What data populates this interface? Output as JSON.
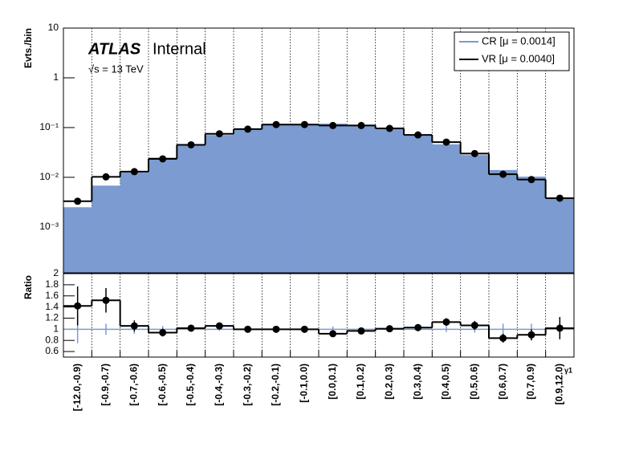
{
  "chart_data": [
    {
      "type": "hist_log",
      "atlas_label": "ATLAS",
      "status": "Internal",
      "energy": "√s = 13 TeV",
      "ylabel": "Evts./bin",
      "log_y": true,
      "grid_x": true,
      "legend": "upper right",
      "ylim": [
        0.00012,
        10
      ],
      "yticks": [
        {
          "value": 0.001,
          "label": "10⁻³"
        },
        {
          "value": 0.01,
          "label": "10⁻²"
        },
        {
          "value": 0.1,
          "label": "10⁻¹"
        },
        1,
        10
      ],
      "series": [
        {
          "name": "CR [μ = 0.0014]",
          "color": "#7b9bd1",
          "style": "filled",
          "values": [
            0.0025,
            0.0068,
            0.0125,
            0.025,
            0.044,
            0.071,
            0.093,
            0.115,
            0.116,
            0.12,
            0.114,
            0.095,
            0.069,
            0.046,
            0.028,
            0.014,
            0.0103,
            0.0037
          ]
        },
        {
          "name": "VR [μ = 0.0040]",
          "color": "#000000",
          "style": "points",
          "values": [
            0.0033,
            0.0102,
            0.013,
            0.0235,
            0.045,
            0.075,
            0.093,
            0.115,
            0.115,
            0.11,
            0.11,
            0.096,
            0.071,
            0.051,
            0.03,
            0.0115,
            0.009,
            0.0038
          ]
        }
      ]
    },
    {
      "type": "ratio",
      "ylabel": "Ratio",
      "xlabel": "γ1",
      "grid_x": true,
      "categories": [
        "[-12.0,-0.9)",
        "[-0.9,-0.7)",
        "[-0.7,-0.6)",
        "[-0.6,-0.5)",
        "[-0.5,-0.4)",
        "[-0.4,-0.3)",
        "[-0.3,-0.2)",
        "[-0.2,-0.1)",
        "[-0.1,0.0)",
        "[0.0,0.1)",
        "[0.1,0.2)",
        "[0.2,0.3)",
        "[0.3,0.4)",
        "[0.4,0.5)",
        "[0.5,0.6)",
        "[0.6,0.7)",
        "[0.7,0.9)",
        "[0.9,12.0)"
      ],
      "ylim": [
        0.5,
        2
      ],
      "yticks": [
        0.6,
        0.8,
        1,
        1.2,
        1.4,
        1.6,
        1.8,
        2
      ],
      "series": [
        {
          "name": "CR",
          "color": "#7b9bd1",
          "values": [
            1,
            1,
            1,
            1,
            1,
            1,
            1,
            1,
            1,
            1,
            1,
            1,
            1,
            1,
            1,
            1,
            1,
            1
          ],
          "errors": [
            0.25,
            0.1,
            0.08,
            0.06,
            0.04,
            0.03,
            0.03,
            0.02,
            0.02,
            0.05,
            0.03,
            0.03,
            0.04,
            0.05,
            0.06,
            0.1,
            0.1,
            0.12
          ]
        },
        {
          "name": "VR",
          "color": "#000000",
          "values": [
            1.42,
            1.52,
            1.06,
            0.94,
            1.02,
            1.06,
            1.0,
            1.0,
            1.0,
            0.92,
            0.97,
            1.01,
            1.03,
            1.13,
            1.07,
            0.84,
            0.9,
            1.02
          ],
          "errors": [
            0.35,
            0.22,
            0.1,
            0.07,
            0.05,
            0.04,
            0.03,
            0.03,
            0.03,
            0.05,
            0.04,
            0.04,
            0.04,
            0.07,
            0.08,
            0.08,
            0.1,
            0.2
          ]
        }
      ]
    }
  ]
}
